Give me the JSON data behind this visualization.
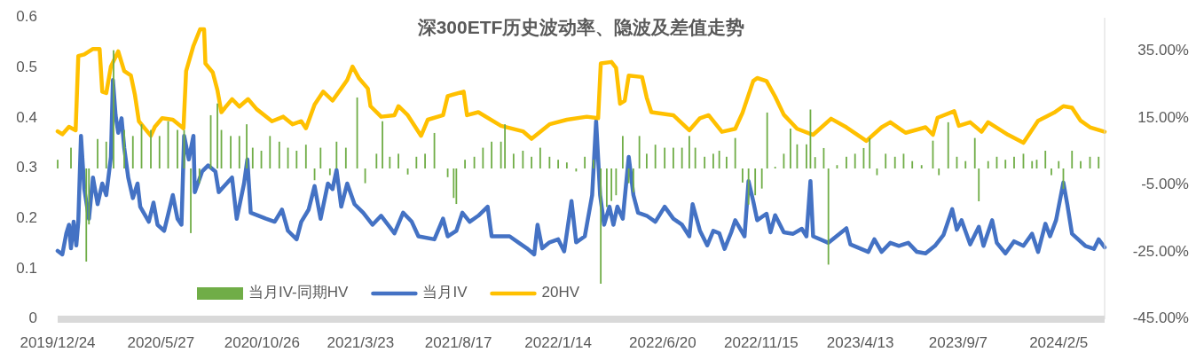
{
  "chart_data": {
    "type": "line",
    "title": "深300ETF历史波动率、隐波及差值走势",
    "xlim": [
      "2019-12-24",
      "2024-04-14"
    ],
    "xticks": [
      {
        "value": "2019-12-24",
        "label": "2019/12/24"
      },
      {
        "value": "2020-05-27",
        "label": "2020/5/27"
      },
      {
        "value": "2020-10-26",
        "label": "2020/10/26"
      },
      {
        "value": "2021-03-23",
        "label": "2021/3/23"
      },
      {
        "value": "2021-08-17",
        "label": "2021/8/17"
      },
      {
        "value": "2022-01-14",
        "label": "2022/1/14"
      },
      {
        "value": "2022-06-20",
        "label": "2022/6/20"
      },
      {
        "value": "2022-11-15",
        "label": "2022/11/15"
      },
      {
        "value": "2023-04-13",
        "label": "2023/4/13"
      },
      {
        "value": "2023-09-07",
        "label": "2023/9/7"
      },
      {
        "value": "2024-02-05",
        "label": "2024/2/5"
      }
    ],
    "ylim": [
      0,
      0.6
    ],
    "yticks": [
      0,
      0.1,
      0.2,
      0.3,
      0.4,
      0.5,
      0.6
    ],
    "y2lim": [
      -45,
      45
    ],
    "y2ticks": [
      {
        "value": -45,
        "label": "-45.00%"
      },
      {
        "value": -25,
        "label": "-25.00%"
      },
      {
        "value": -5,
        "label": "-5.00%"
      },
      {
        "value": 15,
        "label": "15.00%"
      },
      {
        "value": 35,
        "label": "35.00%"
      }
    ],
    "legend": "bottom",
    "series": [
      {
        "name": "当月IV-同期HV",
        "type": "bar",
        "axis": "y2",
        "color": "#70ad47",
        "x": [
          "2019-12-24",
          "2020-01-13",
          "2020-02-05",
          "2020-02-09",
          "2020-02-22",
          "2020-03-06",
          "2020-03-17",
          "2020-04-02",
          "2020-04-15",
          "2020-04-28",
          "2020-05-12",
          "2020-05-25",
          "2020-06-07",
          "2020-06-21",
          "2020-07-01",
          "2020-07-11",
          "2020-07-24",
          "2020-08-10",
          "2020-08-20",
          "2020-08-26",
          "2020-09-09",
          "2020-09-22",
          "2020-10-03",
          "2020-10-12",
          "2020-10-25",
          "2020-11-07",
          "2020-11-21",
          "2020-12-04",
          "2020-12-17",
          "2020-12-31",
          "2021-01-13",
          "2021-01-22",
          "2021-02-05",
          "2021-02-15",
          "2021-03-01",
          "2021-03-18",
          "2021-03-30",
          "2021-04-16",
          "2021-04-25",
          "2021-05-06",
          "2021-05-19",
          "2021-06-02",
          "2021-06-15",
          "2021-06-28",
          "2021-07-12",
          "2021-08-01",
          "2021-08-10",
          "2021-08-14",
          "2021-08-27",
          "2021-09-10",
          "2021-09-23",
          "2021-10-06",
          "2021-10-20",
          "2021-10-26",
          "2021-11-08",
          "2021-11-22",
          "2021-12-05",
          "2021-12-18",
          "2022-01-01",
          "2022-01-14",
          "2022-01-27",
          "2022-02-10",
          "2022-02-23",
          "2022-03-08",
          "2022-03-19",
          "2022-03-28",
          "2022-04-04",
          "2022-04-11",
          "2022-04-21",
          "2022-04-30",
          "2022-05-07",
          "2022-05-16",
          "2022-05-27",
          "2022-06-09",
          "2022-06-23",
          "2022-07-06",
          "2022-07-19",
          "2022-07-30",
          "2022-08-08",
          "2022-08-22",
          "2022-09-04",
          "2022-09-13",
          "2022-09-24",
          "2022-10-07",
          "2022-10-18",
          "2022-10-27",
          "2022-11-06",
          "2022-11-16",
          "2022-11-24",
          "2022-12-06",
          "2022-12-19",
          "2022-12-29",
          "2023-01-08",
          "2023-01-22",
          "2023-01-28",
          "2023-02-04",
          "2023-02-17",
          "2023-02-24",
          "2023-03-09",
          "2023-03-23",
          "2023-04-05",
          "2023-04-18",
          "2023-04-27",
          "2023-05-08",
          "2023-05-21",
          "2023-06-04",
          "2023-06-17",
          "2023-06-30",
          "2023-07-14",
          "2023-07-31",
          "2023-08-09",
          "2023-08-23",
          "2023-09-05",
          "2023-09-18",
          "2023-10-02",
          "2023-10-08",
          "2023-10-22",
          "2023-11-04",
          "2023-11-17",
          "2023-11-30",
          "2023-12-14",
          "2023-12-27",
          "2024-01-03",
          "2024-01-16",
          "2024-01-25",
          "2024-02-05",
          "2024-02-12",
          "2024-02-25",
          "2024-03-09",
          "2024-03-23",
          "2024-04-05"
        ],
        "values": [
          2.6,
          6.2,
          -27.8,
          -16.7,
          8.8,
          8,
          35.3,
          11.5,
          9.7,
          13.2,
          11.5,
          9.7,
          14.1,
          11.5,
          11.5,
          -19.3,
          -4.4,
          15.9,
          19.4,
          11.5,
          9.7,
          9.7,
          13.2,
          6.2,
          5.3,
          9.7,
          8,
          6.2,
          5.3,
          7.1,
          -3.5,
          6.2,
          -2,
          8,
          6.2,
          21.2,
          -4.4,
          4.4,
          14.1,
          3.5,
          4.4,
          -1.8,
          3.5,
          4.4,
          10.6,
          -2.6,
          -8.8,
          -10.6,
          2.6,
          3.5,
          6.2,
          8,
          8,
          13.2,
          4.4,
          5.3,
          3.5,
          6.2,
          3.5,
          2.6,
          1.8,
          -0.9,
          3.5,
          2.6,
          -34.4,
          -11.5,
          -9.7,
          -8,
          9.7,
          -4.4,
          -7.1,
          9.7,
          4.4,
          7.1,
          6.2,
          6.2,
          6.2,
          9.7,
          6.2,
          3.5,
          4.4,
          5.3,
          3.5,
          9.1,
          -4.2,
          -10.8,
          -8,
          -6,
          16.7,
          0.5,
          4.4,
          11.9,
          7.2,
          7.2,
          17.6,
          3.4,
          6.1,
          -28.7,
          1,
          3.5,
          4.4,
          6.1,
          9.1,
          -2,
          4.4,
          3.5,
          4.4,
          2.2,
          1,
          8.3,
          -2,
          13.8,
          3.5,
          2.2,
          9.1,
          -9.8,
          2.2,
          3.5,
          2.6,
          3.5,
          4.4,
          2.2,
          2.6,
          5.3,
          -2,
          2.2,
          -6.1,
          5.3,
          2.2,
          3.5,
          3.5
        ]
      },
      {
        "name": "当月IV",
        "color": "#4472c4",
        "x": [
          "2019-12-24",
          "2019-12-31",
          "2020-01-06",
          "2020-01-10",
          "2020-01-13",
          "2020-01-17",
          "2020-01-21",
          "2020-01-24",
          "2020-01-28",
          "2020-02-02",
          "2020-02-09",
          "2020-02-15",
          "2020-02-22",
          "2020-02-29",
          "2020-03-06",
          "2020-03-13",
          "2020-03-16",
          "2020-03-20",
          "2020-03-24",
          "2020-03-29",
          "2020-04-02",
          "2020-04-08",
          "2020-04-15",
          "2020-04-22",
          "2020-04-26",
          "2020-05-09",
          "2020-05-16",
          "2020-05-22",
          "2020-06-01",
          "2020-06-14",
          "2020-06-21",
          "2020-06-27",
          "2020-07-01",
          "2020-07-08",
          "2020-07-15",
          "2020-07-17",
          "2020-07-28",
          "2020-08-06",
          "2020-08-17",
          "2020-08-22",
          "2020-09-11",
          "2020-09-18",
          "2020-09-29",
          "2020-10-04",
          "2020-10-09",
          "2020-11-01",
          "2020-11-14",
          "2020-11-25",
          "2020-12-04",
          "2020-12-17",
          "2020-12-24",
          "2021-01-04",
          "2021-01-13",
          "2021-01-22",
          "2021-02-02",
          "2021-02-09",
          "2021-02-15",
          "2021-02-22",
          "2021-03-03",
          "2021-03-14",
          "2021-03-27",
          "2021-04-10",
          "2021-04-23",
          "2021-05-13",
          "2021-05-26",
          "2021-06-08",
          "2021-06-18",
          "2021-07-12",
          "2021-07-25",
          "2021-08-01",
          "2021-08-14",
          "2021-08-23",
          "2021-09-03",
          "2021-09-16",
          "2021-09-30",
          "2021-10-06",
          "2021-11-02",
          "2021-11-15",
          "2021-11-28",
          "2021-12-09",
          "2021-12-14",
          "2021-12-21",
          "2022-01-01",
          "2022-01-14",
          "2022-01-23",
          "2022-02-03",
          "2022-02-10",
          "2022-02-23",
          "2022-03-06",
          "2022-03-12",
          "2022-03-18",
          "2022-03-24",
          "2022-04-01",
          "2022-04-07",
          "2022-04-13",
          "2022-04-21",
          "2022-04-30",
          "2022-05-07",
          "2022-05-14",
          "2022-05-27",
          "2022-06-09",
          "2022-06-23",
          "2022-07-06",
          "2022-07-19",
          "2022-07-30",
          "2022-08-04",
          "2022-08-15",
          "2022-08-26",
          "2022-09-04",
          "2022-09-13",
          "2022-09-21",
          "2022-10-01",
          "2022-10-07",
          "2022-10-21",
          "2022-10-27",
          "2022-11-03",
          "2022-11-09",
          "2022-11-23",
          "2022-11-29",
          "2022-12-06",
          "2022-12-19",
          "2023-01-02",
          "2023-01-15",
          "2023-01-22",
          "2023-01-28",
          "2023-02-01",
          "2023-02-24",
          "2023-03-23",
          "2023-03-29",
          "2023-04-25",
          "2023-05-04",
          "2023-05-15",
          "2023-05-28",
          "2023-06-10",
          "2023-06-24",
          "2023-07-07",
          "2023-07-20",
          "2023-08-03",
          "2023-08-16",
          "2023-08-29",
          "2023-09-05",
          "2023-09-12",
          "2023-09-25",
          "2023-10-08",
          "2023-10-15",
          "2023-10-28",
          "2023-11-04",
          "2023-11-17",
          "2023-11-30",
          "2023-12-14",
          "2023-12-27",
          "2024-01-05",
          "2024-01-16",
          "2024-01-23",
          "2024-02-01",
          "2024-02-12",
          "2024-02-18",
          "2024-02-25",
          "2024-03-16",
          "2024-03-29",
          "2024-04-05",
          "2024-04-14"
        ],
        "values": [
          0.136,
          0.129,
          0.171,
          0.188,
          0.141,
          0.194,
          0.147,
          0.194,
          0.365,
          0.259,
          0.2,
          0.282,
          0.229,
          0.27,
          0.247,
          0.323,
          0.476,
          0.406,
          0.371,
          0.4,
          0.341,
          0.282,
          0.241,
          0.27,
          0.224,
          0.194,
          0.232,
          0.188,
          0.176,
          0.247,
          0.2,
          0.188,
          0.365,
          0.318,
          0.365,
          0.253,
          0.294,
          0.306,
          0.294,
          0.253,
          0.282,
          0.2,
          0.27,
          0.318,
          0.212,
          0.2,
          0.194,
          0.218,
          0.176,
          0.159,
          0.194,
          0.218,
          0.265,
          0.2,
          0.27,
          0.259,
          0.297,
          0.224,
          0.27,
          0.229,
          0.212,
          0.188,
          0.206,
          0.171,
          0.212,
          0.194,
          0.165,
          0.159,
          0.2,
          0.165,
          0.176,
          0.212,
          0.194,
          0.206,
          0.224,
          0.165,
          0.165,
          0.153,
          0.141,
          0.129,
          0.188,
          0.141,
          0.153,
          0.159,
          0.135,
          0.235,
          0.153,
          0.165,
          0.247,
          0.394,
          0.247,
          0.188,
          0.224,
          0.188,
          0.224,
          0.2,
          0.323,
          0.247,
          0.212,
          0.206,
          0.194,
          0.224,
          0.2,
          0.188,
          0.165,
          0.229,
          0.176,
          0.147,
          0.176,
          0.171,
          0.14,
          0.173,
          0.197,
          0.165,
          0.275,
          0.235,
          0.197,
          0.21,
          0.173,
          0.207,
          0.173,
          0.17,
          0.18,
          0.165,
          0.275,
          0.165,
          0.152,
          0.181,
          0.149,
          0.134,
          0.159,
          0.134,
          0.152,
          0.146,
          0.152,
          0.134,
          0.131,
          0.146,
          0.168,
          0.219,
          0.178,
          0.197,
          0.149,
          0.184,
          0.146,
          0.197,
          0.152,
          0.131,
          0.155,
          0.146,
          0.17,
          0.134,
          0.19,
          0.165,
          0.197,
          0.272,
          0.228,
          0.17,
          0.146,
          0.14,
          0.159,
          0.143
        ]
      },
      {
        "name": "20HV",
        "color": "#ffc000",
        "x": [
          "2019-12-24",
          "2019-12-31",
          "2020-01-10",
          "2020-01-20",
          "2020-01-24",
          "2020-02-02",
          "2020-02-15",
          "2020-02-25",
          "2020-02-29",
          "2020-03-06",
          "2020-03-13",
          "2020-03-24",
          "2020-04-02",
          "2020-04-12",
          "2020-04-18",
          "2020-04-24",
          "2020-05-12",
          "2020-05-18",
          "2020-05-29",
          "2020-06-14",
          "2020-06-30",
          "2020-07-04",
          "2020-07-15",
          "2020-07-25",
          "2020-07-31",
          "2020-08-02",
          "2020-08-13",
          "2020-08-20",
          "2020-08-26",
          "2020-09-11",
          "2020-09-22",
          "2020-10-05",
          "2020-10-18",
          "2020-11-10",
          "2020-11-27",
          "2020-12-11",
          "2020-12-24",
          "2020-12-31",
          "2021-01-13",
          "2021-01-26",
          "2021-02-09",
          "2021-02-22",
          "2021-03-03",
          "2021-03-11",
          "2021-03-21",
          "2021-04-03",
          "2021-04-07",
          "2021-04-23",
          "2021-05-13",
          "2021-05-19",
          "2021-06-02",
          "2021-06-22",
          "2021-07-02",
          "2021-07-25",
          "2021-08-01",
          "2021-08-25",
          "2021-08-30",
          "2021-09-16",
          "2021-10-20",
          "2021-11-22",
          "2021-12-05",
          "2022-01-01",
          "2022-01-27",
          "2022-02-26",
          "2022-03-15",
          "2022-03-19",
          "2022-04-04",
          "2022-04-11",
          "2022-04-17",
          "2022-04-24",
          "2022-04-30",
          "2022-05-20",
          "2022-05-27",
          "2022-06-03",
          "2022-07-06",
          "2022-07-30",
          "2022-08-15",
          "2022-08-28",
          "2022-09-17",
          "2022-10-07",
          "2022-10-18",
          "2022-11-03",
          "2022-11-09",
          "2022-11-23",
          "2022-12-06",
          "2022-12-19",
          "2023-01-08",
          "2023-02-01",
          "2023-02-28",
          "2023-03-23",
          "2023-04-22",
          "2023-05-15",
          "2023-05-28",
          "2023-06-20",
          "2023-07-20",
          "2023-07-31",
          "2023-08-07",
          "2023-09-01",
          "2023-09-08",
          "2023-09-25",
          "2023-10-12",
          "2023-10-22",
          "2023-11-21",
          "2023-12-14",
          "2024-01-05",
          "2024-01-29",
          "2024-02-12",
          "2024-02-25",
          "2024-03-09",
          "2024-03-23",
          "2024-04-14"
        ],
        "values": [
          0.374,
          0.368,
          0.383,
          0.376,
          0.524,
          0.527,
          0.538,
          0.538,
          0.453,
          0.45,
          0.503,
          0.533,
          0.494,
          0.485,
          0.447,
          0.394,
          0.365,
          0.383,
          0.4,
          0.397,
          0.38,
          0.494,
          0.544,
          0.577,
          0.577,
          0.509,
          0.491,
          0.456,
          0.412,
          0.438,
          0.423,
          0.438,
          0.418,
          0.394,
          0.403,
          0.388,
          0.394,
          0.38,
          0.427,
          0.453,
          0.435,
          0.459,
          0.476,
          0.503,
          0.479,
          0.459,
          0.424,
          0.403,
          0.406,
          0.424,
          0.406,
          0.365,
          0.397,
          0.406,
          0.444,
          0.453,
          0.406,
          0.412,
          0.385,
          0.374,
          0.359,
          0.388,
          0.397,
          0.403,
          0.4,
          0.509,
          0.512,
          0.5,
          0.429,
          0.435,
          0.485,
          0.482,
          0.441,
          0.412,
          0.406,
          0.376,
          0.4,
          0.406,
          0.373,
          0.379,
          0.411,
          0.474,
          0.48,
          0.474,
          0.443,
          0.407,
          0.379,
          0.367,
          0.399,
          0.382,
          0.355,
          0.382,
          0.392,
          0.371,
          0.382,
          0.367,
          0.401,
          0.414,
          0.385,
          0.392,
          0.373,
          0.392,
          0.367,
          0.351,
          0.395,
          0.411,
          0.424,
          0.421,
          0.395,
          0.382,
          0.373
        ]
      }
    ]
  }
}
